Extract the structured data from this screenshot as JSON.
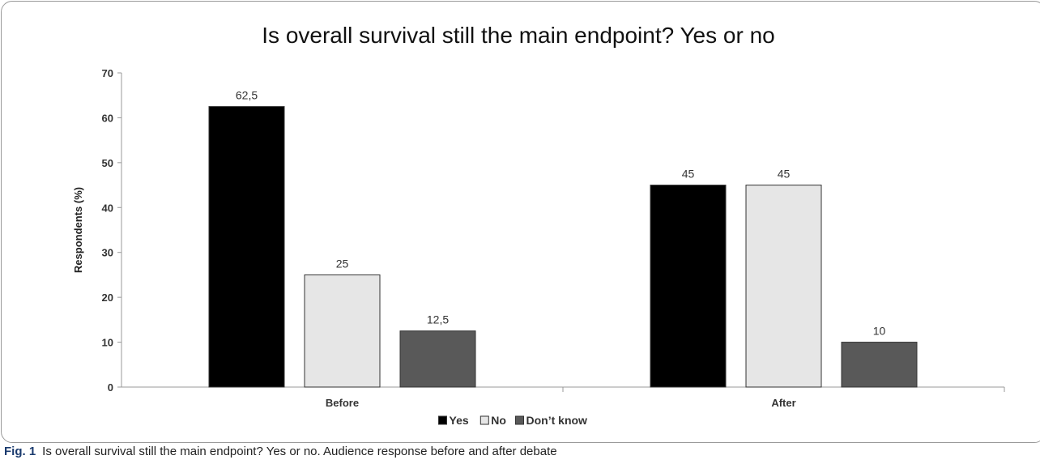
{
  "chart_data": {
    "type": "bar",
    "title": "Is overall survival still the main endpoint? Yes or no",
    "xlabel": "",
    "ylabel": "Respondents (%)",
    "categories": [
      "Before",
      "After"
    ],
    "ylim": [
      0,
      70
    ],
    "yticks": [
      0,
      10,
      20,
      30,
      40,
      50,
      60,
      70
    ],
    "grid": false,
    "legend_position": "bottom",
    "series": [
      {
        "name": "Yes",
        "values": [
          62.5,
          45
        ],
        "labels": [
          "62,5",
          "45"
        ],
        "color": "#000000"
      },
      {
        "name": "No",
        "values": [
          25,
          45
        ],
        "labels": [
          "25",
          "45"
        ],
        "color": "#e6e6e6"
      },
      {
        "name": "Don’t know",
        "values": [
          12.5,
          10
        ],
        "labels": [
          "12,5",
          "10"
        ],
        "color": "#595959"
      }
    ]
  },
  "caption": {
    "label": "Fig. 1",
    "text": "Is overall survival still the main endpoint? Yes or no. Audience response before and after debate"
  }
}
